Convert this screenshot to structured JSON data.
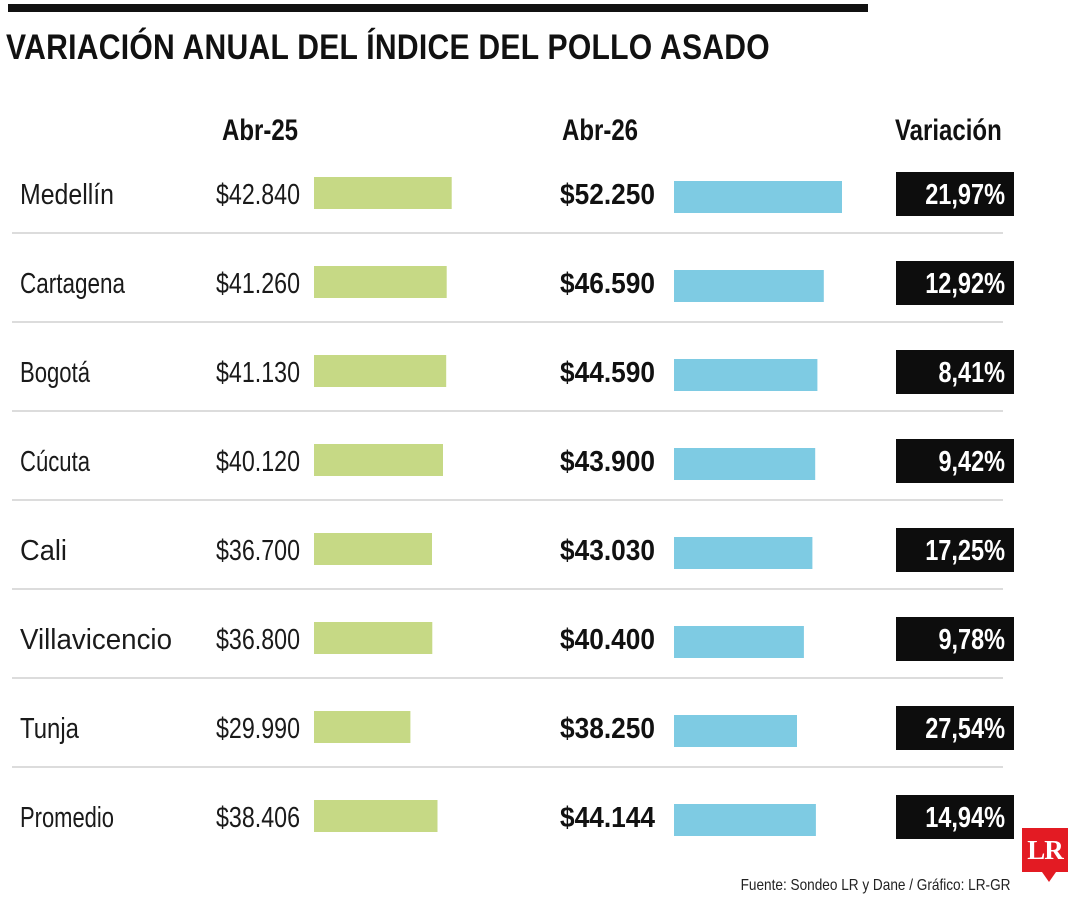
{
  "title": "VARIACIÓN ANUAL DEL ÍNDICE DEL POLLO ASADO",
  "source": "Fuente: Sondeo LR y Dane / Gráfico: LR-GR",
  "logo_text": "LR",
  "colors": {
    "abr25_bar": "#c6d985",
    "abr26_bar": "#7ecbe3",
    "variation_box": "#0d0d0d",
    "logo": "#e31b23"
  },
  "chart_data": {
    "type": "bar",
    "categories": [
      "Medellín",
      "Cartagena",
      "Bogotá",
      "Cúcuta",
      "Cali",
      "Villavicencio",
      "Tunja",
      "Promedio"
    ],
    "series": [
      {
        "name": "Abr-25",
        "values": [
          42840,
          41260,
          41130,
          40120,
          36700,
          36800,
          29990,
          38406
        ],
        "labels": [
          "$42.840",
          "$41.260",
          "$41.130",
          "$40.120",
          "$36.700",
          "$36.800",
          "$29.990",
          "$38.406"
        ]
      },
      {
        "name": "Abr-26",
        "values": [
          52250,
          46590,
          44590,
          43900,
          43030,
          40400,
          38250,
          44144
        ],
        "labels": [
          "$52.250",
          "$46.590",
          "$44.590",
          "$43.900",
          "$43.030",
          "$40.400",
          "$38.250",
          "$44.144"
        ]
      }
    ],
    "variation_header": "Variación",
    "variation": [
      "21,97%",
      "12,92%",
      "8,41%",
      "9,42%",
      "17,25%",
      "9,78%",
      "27,54%",
      "14,94%"
    ]
  }
}
